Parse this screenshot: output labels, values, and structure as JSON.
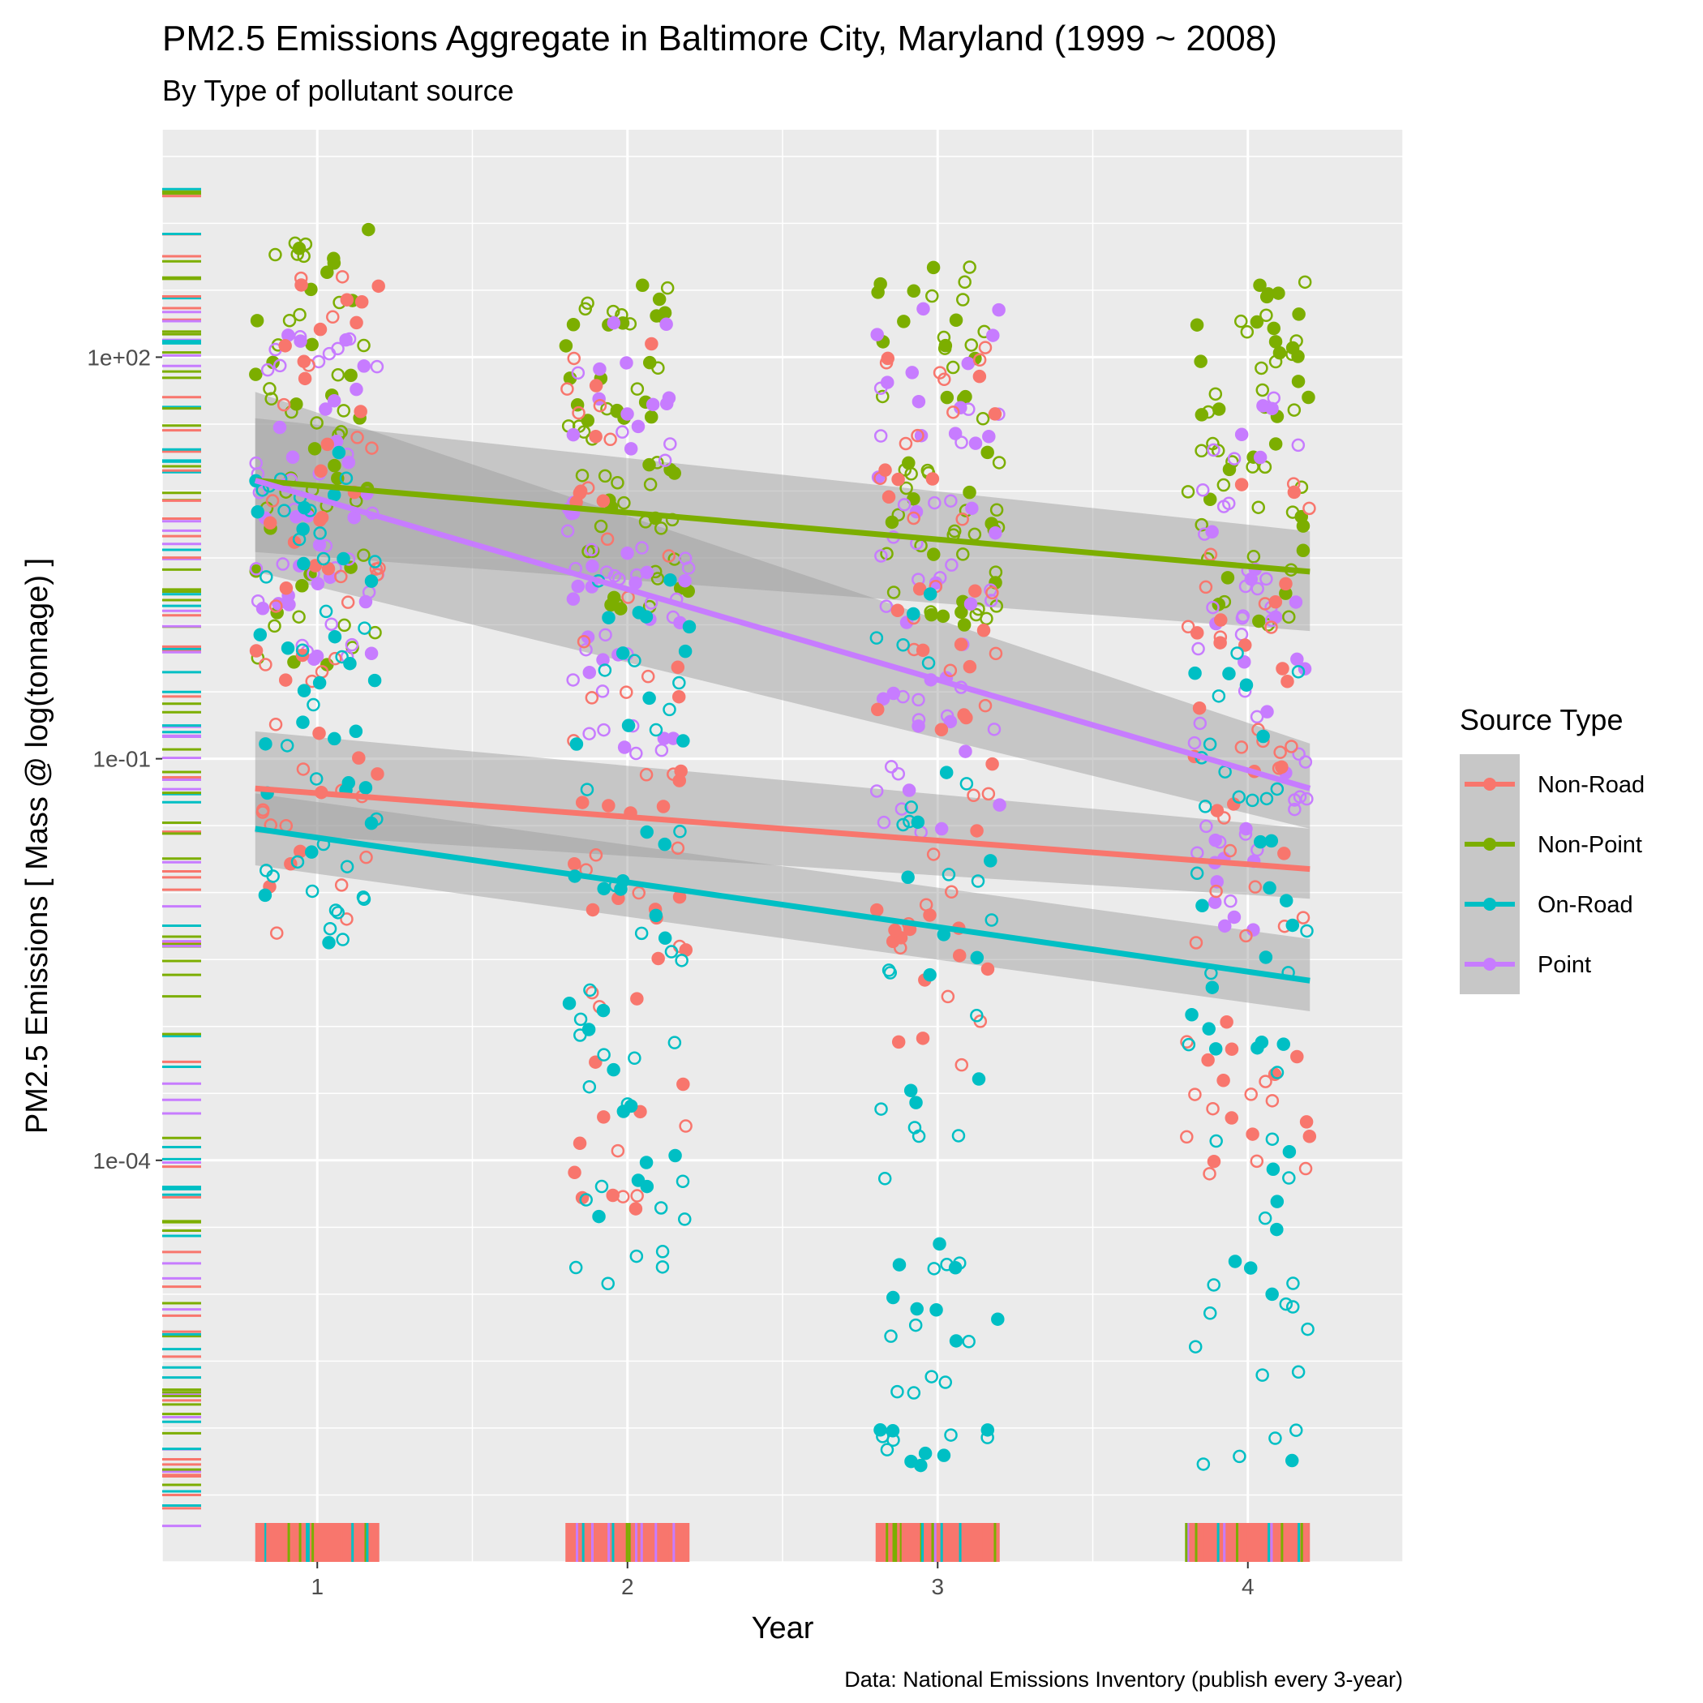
{
  "chart_data": {
    "type": "scatter",
    "title": "PM2.5 Emissions Aggregate in Baltimore City, Maryland (1999 ~ 2008)",
    "subtitle": "By Type of pollutant source",
    "xlabel": "Year",
    "ylabel": "PM2.5 Emissions [ Mass @ log(tonnage) ]",
    "caption": "Data: National Emissions Inventory (publish every 3-year)",
    "x_scale": "linear",
    "y_scale": "log10",
    "xlim": [
      0.5,
      4.5
    ],
    "ylim": [
      1e-07,
      5000
    ],
    "x_ticks": [
      1,
      2,
      3,
      4
    ],
    "x_tick_labels": [
      "1",
      "2",
      "3",
      "4"
    ],
    "y_ticks": [
      0.0001,
      0.1,
      100
    ],
    "y_tick_labels": [
      "1e-04",
      "1e-01",
      "1e+02"
    ],
    "grid": true,
    "legend": {
      "title": "Source Type",
      "placement": "right",
      "entries": [
        "Non-Road",
        "Non-Point",
        "On-Road",
        "Point"
      ]
    },
    "colors": {
      "Non-Road": "#F8766D",
      "Non-Point": "#7CAE00",
      "On-Road": "#00BFC4",
      "Point": "#C77CFF"
    },
    "trend_lines": [
      {
        "name": "Non-Point",
        "x": [
          0.8,
          4.2
        ],
        "y": [
          12,
          2.5
        ],
        "se_low": [
          3.5,
          0.9
        ],
        "se_high": [
          35,
          5
        ]
      },
      {
        "name": "Point",
        "x": [
          0.8,
          4.2
        ],
        "y": [
          12,
          0.06
        ],
        "se_low": [
          2.5,
          0.03
        ],
        "se_high": [
          55,
          0.13
        ]
      },
      {
        "name": "Non-Road",
        "x": [
          0.8,
          4.2
        ],
        "y": [
          0.06,
          0.015
        ],
        "se_low": [
          0.028,
          0.009
        ],
        "se_high": [
          0.16,
          0.03
        ]
      },
      {
        "name": "On-Road",
        "x": [
          0.8,
          4.2
        ],
        "y": [
          0.03,
          0.0022
        ],
        "se_low": [
          0.016,
          0.0013
        ],
        "se_high": [
          0.055,
          0.0045
        ]
      }
    ],
    "series": [
      {
        "name": "Non-Point",
        "point_ranges": [
          [
            1,
            0.5,
            1000
          ],
          [
            2,
            1,
            500
          ],
          [
            3,
            1,
            500
          ],
          [
            4,
            1,
            400
          ]
        ]
      },
      {
        "name": "Point",
        "point_ranges": [
          [
            1,
            0.5,
            150
          ],
          [
            2,
            0.1,
            200
          ],
          [
            3,
            0.02,
            300
          ],
          [
            4,
            0.005,
            50
          ]
        ]
      },
      {
        "name": "Non-Road",
        "point_ranges": [
          [
            1,
            0.004,
            400
          ],
          [
            2,
            4e-05,
            150
          ],
          [
            3,
            0.0002,
            150
          ],
          [
            4,
            5e-05,
            30
          ]
        ]
      },
      {
        "name": "On-Road",
        "point_ranges": [
          [
            1,
            0.004,
            20
          ],
          [
            2,
            1.2e-05,
            5
          ],
          [
            3,
            5e-07,
            2
          ],
          [
            4,
            5e-07,
            1
          ]
        ]
      }
    ]
  }
}
